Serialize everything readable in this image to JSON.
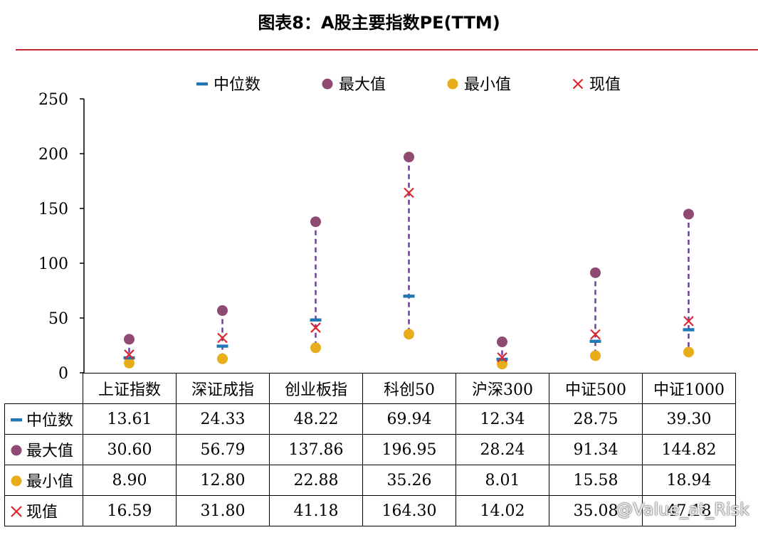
{
  "title": "图表8：A股主要指数PE(TTM)",
  "legend": [
    {
      "key": "median",
      "label": "中位数",
      "marker": "dash",
      "color": "#1f77b4"
    },
    {
      "key": "max",
      "label": "最大值",
      "marker": "circle",
      "color": "#8e4a72"
    },
    {
      "key": "min",
      "label": "最小值",
      "marker": "circle",
      "color": "#e8ad1a"
    },
    {
      "key": "current",
      "label": "现值",
      "marker": "cross",
      "color": "#e0262d"
    }
  ],
  "colors": {
    "median": "#1f77b4",
    "max": "#8e4a72",
    "min": "#e8ad1a",
    "current": "#e0262d",
    "range_line": "#6b3fa0",
    "title_rule": "#c0282d"
  },
  "chart_data": {
    "type": "scatter",
    "categories": [
      "上证指数",
      "深证成指",
      "创业板指",
      "科创50",
      "沪深300",
      "中证500",
      "中证1000"
    ],
    "series": [
      {
        "name": "中位数",
        "values": [
          13.61,
          24.33,
          48.22,
          69.94,
          12.34,
          28.75,
          39.3
        ]
      },
      {
        "name": "最大值",
        "values": [
          30.6,
          56.79,
          137.86,
          196.95,
          28.24,
          91.34,
          144.82
        ]
      },
      {
        "name": "最小值",
        "values": [
          8.9,
          12.8,
          22.88,
          35.26,
          8.01,
          15.58,
          18.94
        ]
      },
      {
        "name": "现值",
        "values": [
          16.59,
          31.8,
          41.18,
          164.3,
          14.02,
          35.08,
          47.18
        ]
      }
    ],
    "ylim": [
      0,
      250
    ],
    "yticks": [
      0,
      50,
      100,
      150,
      200,
      250
    ],
    "legend_position": "top",
    "grid": false
  },
  "table": {
    "rows": [
      {
        "label": "中位数",
        "values": [
          "13.61",
          "24.33",
          "48.22",
          "69.94",
          "12.34",
          "28.75",
          "39.30"
        ]
      },
      {
        "label": "最大值",
        "values": [
          "30.60",
          "56.79",
          "137.86",
          "196.95",
          "28.24",
          "91.34",
          "144.82"
        ]
      },
      {
        "label": "最小值",
        "values": [
          "8.90",
          "12.80",
          "22.88",
          "35.26",
          "8.01",
          "15.58",
          "18.94"
        ]
      },
      {
        "label": "现值",
        "values": [
          "16.59",
          "31.80",
          "41.18",
          "164.30",
          "14.02",
          "35.08",
          "47.18"
        ]
      }
    ]
  },
  "watermark": "@Value_at_Risk"
}
